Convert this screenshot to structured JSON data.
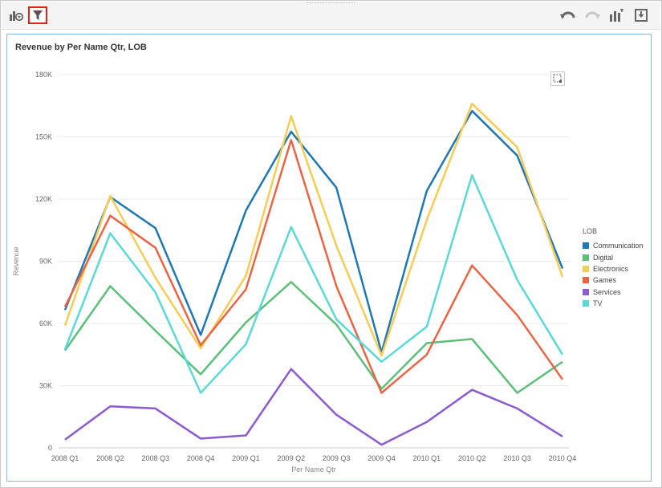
{
  "toolbar": {
    "left_icons": [
      "chart-properties-icon",
      "filter-icon"
    ],
    "right_icons": [
      "undo-icon",
      "redo-icon",
      "add-visualization-icon",
      "export-icon"
    ]
  },
  "colors": {
    "accent_selected": "#d9251c",
    "panel_border": "#8ab6e0"
  },
  "chart_data": {
    "type": "line",
    "title": "Revenue by Per Name Qtr, LOB",
    "xlabel": "Per Name Qtr",
    "ylabel": "Revenue",
    "ylim": [
      0,
      180000
    ],
    "y_ticks": [
      0,
      30000,
      60000,
      90000,
      120000,
      150000,
      180000
    ],
    "y_tick_labels": [
      "0",
      "30K",
      "60K",
      "90K",
      "120K",
      "150K",
      "180K"
    ],
    "grid": true,
    "legend_title": "LOB",
    "legend_placement": "right",
    "categories": [
      "2008 Q1",
      "2008 Q2",
      "2008 Q3",
      "2008 Q4",
      "2009 Q1",
      "2009 Q2",
      "2009 Q3",
      "2009 Q4",
      "2010 Q1",
      "2010 Q2",
      "2010 Q3",
      "2010 Q4"
    ],
    "series": [
      {
        "name": "Communication",
        "color": "#1f77b4",
        "values": [
          66500,
          121000,
          106000,
          54500,
          114500,
          152500,
          125500,
          46000,
          124000,
          162500,
          141000,
          86500
        ]
      },
      {
        "name": "Digital",
        "color": "#5cbf7a",
        "values": [
          47000,
          78000,
          56500,
          35500,
          60500,
          80000,
          59500,
          28500,
          50500,
          52500,
          26500,
          41500
        ]
      },
      {
        "name": "Electronics",
        "color": "#f7cc55",
        "values": [
          59000,
          121500,
          82000,
          48000,
          83000,
          160000,
          97500,
          44500,
          110000,
          166000,
          145000,
          82500
        ]
      },
      {
        "name": "Games",
        "color": "#ea6545",
        "values": [
          68000,
          112000,
          96500,
          49500,
          76500,
          148500,
          78000,
          26500,
          45000,
          88000,
          64000,
          33000
        ]
      },
      {
        "name": "Services",
        "color": "#8b5bd2",
        "values": [
          4000,
          20000,
          19000,
          4500,
          6000,
          38000,
          16000,
          1500,
          12500,
          28000,
          19000,
          5500
        ]
      },
      {
        "name": "TV",
        "color": "#5bd8d8",
        "values": [
          47500,
          103500,
          75000,
          26500,
          50000,
          106500,
          62000,
          41500,
          58500,
          131500,
          81000,
          45000
        ]
      }
    ]
  }
}
